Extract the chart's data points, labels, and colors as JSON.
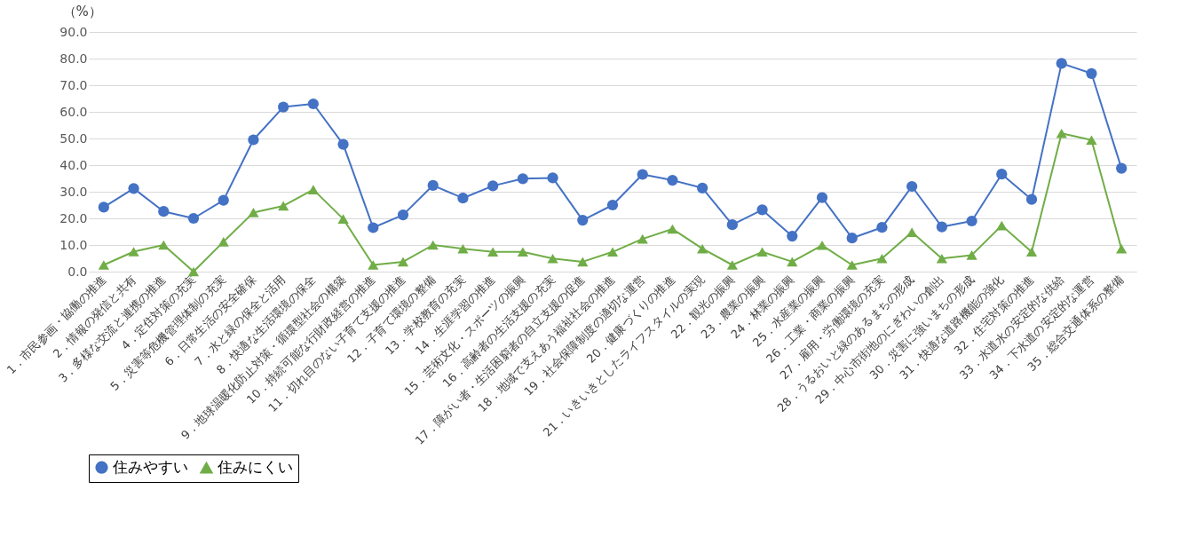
{
  "chart_data": {
    "type": "line",
    "ylabel": "（%）",
    "categories": [
      "1．市民参画・協働の推進",
      "2．情報の発信と共有",
      "3．多様な交流と連携の推進",
      "4．定住対策の充実",
      "5．災害等危機管理体制の充実",
      "6．日常生活の安全確保",
      "7．水と緑の保全と活用",
      "8．快適な生活環境の保全",
      "9．地球温暖化防止対策・循環型社会の構築",
      "10．持続可能な行財政経営の推進",
      "11．切れ目のない子育て支援の推進",
      "12．子育て環境の整備",
      "13．学校教育の充実",
      "14．生涯学習の推進",
      "15．芸術文化・スポーツの振興",
      "16．高齢者の生活支援の充実",
      "17．障がい者・生活困窮者の自立支援の促進",
      "18．地域で支えあう福祉社会の推進",
      "19．社会保障制度の適切な運営",
      "20．健康づくりの推進",
      "21．いきいきとしたライフスタイルの実現",
      "22．観光の振興",
      "23．農業の振興",
      "24．林業の振興",
      "25．水産業の振興",
      "26．工業・商業の振興",
      "27．雇用・労働環境の充実",
      "28．うるおいと緑のあるまちの形成",
      "29．中心市街地のにぎわいの創出",
      "30．災害に強いまちの形成",
      "31．快適な道路機能の強化",
      "32．住宅対策の推進",
      "33．水道水の安定的な供給",
      "34．下水道の安定的な運営",
      "35．総合交通体系の整備"
    ],
    "series": [
      {
        "name": "住みやすい",
        "color": "#4472c4",
        "marker": "circle",
        "values": [
          24.2,
          31.2,
          22.6,
          20.0,
          26.8,
          49.5,
          61.8,
          63.0,
          47.8,
          16.5,
          21.3,
          32.4,
          27.6,
          32.2,
          34.9,
          35.2,
          19.3,
          25.0,
          36.5,
          34.3,
          31.4,
          17.6,
          23.2,
          13.3,
          27.8,
          12.6,
          16.6,
          32.0,
          16.8,
          19.0,
          36.6,
          27.1,
          78.2,
          74.4,
          38.8
        ]
      },
      {
        "name": "住みにくい",
        "color": "#70ad47",
        "marker": "triangle",
        "values": [
          2.5,
          7.5,
          10.0,
          0.0,
          11.2,
          22.2,
          24.7,
          30.8,
          19.8,
          2.5,
          3.7,
          10.0,
          8.6,
          7.4,
          7.4,
          4.9,
          3.7,
          7.4,
          12.3,
          16.0,
          8.6,
          2.5,
          7.4,
          3.7,
          9.9,
          2.5,
          4.9,
          14.8,
          4.9,
          6.2,
          17.3,
          7.4,
          51.9,
          49.4,
          8.6
        ]
      }
    ],
    "ylim": [
      0,
      90
    ],
    "yticks": [
      {
        "value": 0,
        "label": "0.0"
      },
      {
        "value": 10,
        "label": "10.0"
      },
      {
        "value": 20,
        "label": "20.0"
      },
      {
        "value": 30,
        "label": "30.0"
      },
      {
        "value": 40,
        "label": "40.0"
      },
      {
        "value": 50,
        "label": "50.0"
      },
      {
        "value": 60,
        "label": "60.0"
      },
      {
        "value": 70,
        "label": "70.0"
      },
      {
        "value": 80,
        "label": "80.0"
      },
      {
        "value": 90,
        "label": "90.0"
      }
    ],
    "grid": "y",
    "legend": "bottom",
    "line_style": "solid"
  }
}
